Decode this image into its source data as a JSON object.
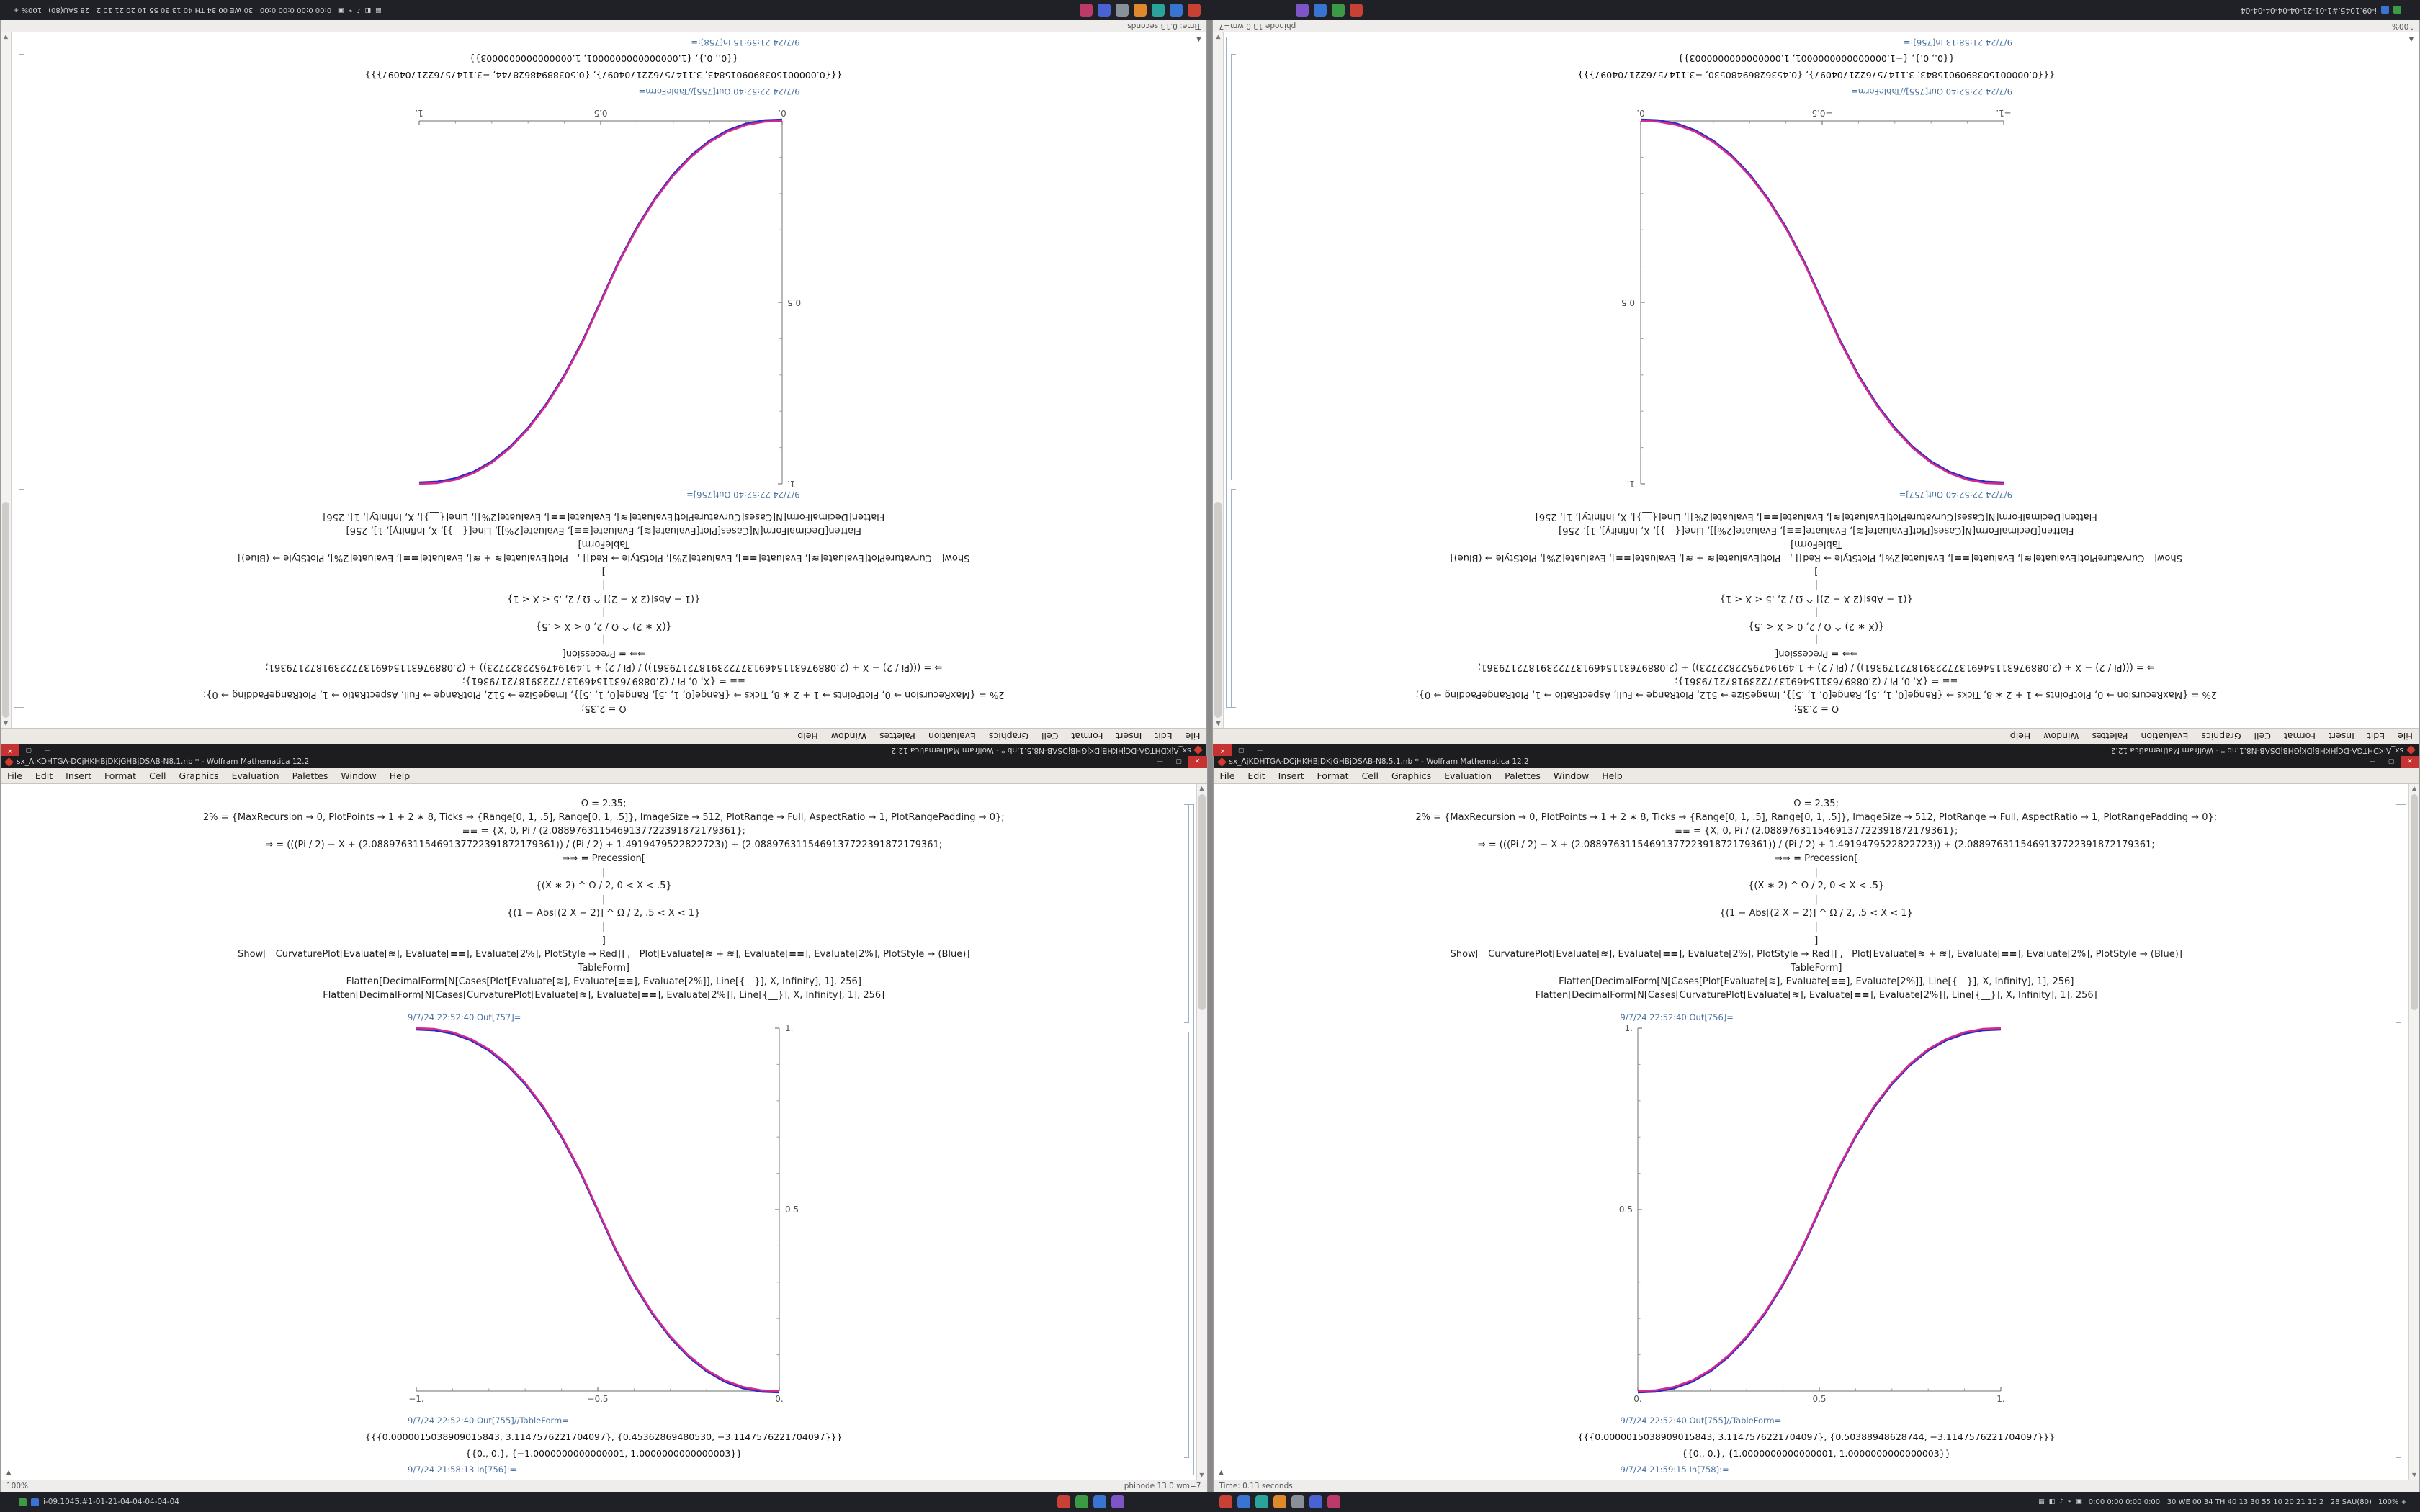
{
  "desktop": {
    "controls": {
      "minimize": "—",
      "maximize": "▢",
      "close": "✕"
    },
    "insertion_marker": "▲",
    "scroll_up": "▲",
    "scroll_down": "▼",
    "menu": [
      "File",
      "Edit",
      "Insert",
      "Format",
      "Cell",
      "Graphics",
      "Evaluation",
      "Palettes",
      "Window",
      "Help"
    ],
    "taskbar": {
      "left_text": "i-09.1045.#1-01-21-04-04-04-04-04",
      "apps_a": [
        "#c94034",
        "#3d9a44",
        "#3a74d2",
        "#7e55c6"
      ],
      "apps_b": [
        "#c94034",
        "#3a74d2",
        "#2aa39b",
        "#de8a2c",
        "#8a9097",
        "#4a63d4",
        "#bb3a68"
      ],
      "tray_glyphs": [
        "▦",
        "◧",
        "♪",
        "⌁",
        "▣"
      ],
      "tray_text": "0:00 0:00 0:00 0:00   30 WE 00 34 TH 40 13 30 55 10 20 21 10 2   28 SAU(80)",
      "tray_zoom": "100% +"
    },
    "windows": {
      "left": {
        "title": "sx_AjKDHTGA-DCjHKHBjDKjGHBjDSAB-N8.1.nb * - Wolfram Mathematica 12.2",
        "code_lines": [
          "Ω = 2.35;",
          "2% = {MaxRecursion → 0, PlotPoints → 1 + 2 ∗ 8, Ticks → {Range[0, 1, .5], Range[0, 1, .5]}, ImageSize → 512, PlotRange → Full, AspectRatio → 1, PlotRangePadding → 0};",
          "≡≡ = {X, 0, Pi / (2.0889763115469137722391872179361};",
          "⇒ = (((Pi / 2) − X + (2.0889763115469137722391872179361)) / (Pi / 2) + 1.4919479522822723)) + (2.0889763115469137722391872179361;",
          "⇒⇒ = Precession[",
          "|",
          "{(X ∗ 2) ^ Ω / 2, 0 < X < .5}",
          "|",
          "{(1 − Abs[(2 X − 2)] ^ Ω / 2, .5 < X < 1}",
          "|",
          "]",
          "Show[   CurvaturePlot[Evaluate[≋], Evaluate[≡≡], Evaluate[2%], PlotStyle → Red]] ,   Plot[Evaluate[≋ + ≋], Evaluate[≡≡], Evaluate[2%], PlotStyle → (Blue)]",
          "TableForm]",
          "Flatten[DecimalForm[N[Cases[Plot[Evaluate[≋], Evaluate[≡≡], Evaluate[2%]], Line[{__}], X, Infinity], 1], 256]",
          "Flatten[DecimalForm[N[Cases[CurvaturePlot[Evaluate[≋], Evaluate[≡≡], Evaluate[2%]], Line[{__}], X, Infinity], 1], 256]"
        ],
        "out_label": "9/7/24 22:52:40 Out[757]=",
        "tableform_label": "9/7/24 22:52:40 Out[755]//TableForm=",
        "result_line1": "{{{0.0000015038909015843, 3.1147576221704097}, {0.45362869480530, −3.1147576221704097}}}",
        "result_line2": "{{0., 0.}, {−1.0000000000000001, 1.0000000000000003}}",
        "in_label": "9/7/24 21:58:13 In[756]:=",
        "status_left": "100%",
        "status_right": "phinode 13.0 wm=7"
      },
      "right": {
        "title": "sx_AjKDHTGA-DCjHKHBjDKjGHBjDSAB-N8.5.1.nb * - Wolfram Mathematica 12.2",
        "code_lines": [
          "Ω = 2.35;",
          "2% = {MaxRecursion → 0, PlotPoints → 1 + 2 ∗ 8, Ticks → {Range[0, 1, .5], Range[0, 1, .5]}, ImageSize → 512, PlotRange → Full, AspectRatio → 1, PlotRangePadding → 0};",
          "≡≡ = {X, 0, Pi / (2.0889763115469137722391872179361};",
          "⇒ = (((Pi / 2) − X + (2.0889763115469137722391872179361)) / (Pi / 2) + 1.4919479522822723)) + (2.0889763115469137722391872179361;",
          "⇒⇒ = Precession[",
          "|",
          "{(X ∗ 2) ^ Ω / 2, 0 < X < .5}",
          "|",
          "{(1 − Abs[(2 X − 2)] ^ Ω / 2, .5 < X < 1}",
          "|",
          "]",
          "Show[   CurvaturePlot[Evaluate[≋], Evaluate[≡≡], Evaluate[2%], PlotStyle → Red]] ,   Plot[Evaluate[≋ + ≋], Evaluate[≡≡], Evaluate[2%], PlotStyle → (Blue)]",
          "TableForm]",
          "Flatten[DecimalForm[N[Cases[Plot[Evaluate[≋], Evaluate[≡≡], Evaluate[2%]], Line[{__}], X, Infinity], 1], 256]",
          "Flatten[DecimalForm[N[Cases[CurvaturePlot[Evaluate[≋], Evaluate[≡≡], Evaluate[2%]], Line[{__}], X, Infinity], 1], 256]"
        ],
        "out_label": "9/7/24 22:52:40 Out[756]=",
        "tableform_label": "9/7/24 22:52:40 Out[755]//TableForm=",
        "result_line1": "{{{0.0000015038909015843, 3.1147576221704097}, {0.50388948628744, −3.1147576221704097}}}",
        "result_line2": "{{0., 0.}, {1.0000000000000001, 1.0000000000000003}}",
        "in_label": "9/7/24 21:59:15 In[758]:=",
        "status_left": "Time: 0.13 seconds",
        "status_right": ""
      }
    }
  },
  "chart_data": [
    {
      "type": "line",
      "title": "",
      "xlabel": "",
      "ylabel": "",
      "x_range": [
        -1,
        0
      ],
      "y_range": [
        0,
        1
      ],
      "y_axis_side": "right",
      "minor_step": 0.1,
      "x_major": [
        {
          "v": -1,
          "label": "−1."
        },
        {
          "v": -0.5,
          "label": "−0.5"
        },
        {
          "v": 0,
          "label": "0."
        }
      ],
      "y_major": [
        {
          "v": 0.5,
          "label": "0.5"
        },
        {
          "v": 1,
          "label": "1."
        }
      ],
      "series": [
        {
          "name": "Plot",
          "color": "#2a2ac8"
        },
        {
          "name": "CurvaturePlot",
          "color": "#d62a8c"
        }
      ],
      "points": [
        [
          -1,
          1
        ],
        [
          -0.95,
          0.9978
        ],
        [
          -0.9,
          0.9886
        ],
        [
          -0.85,
          0.9705
        ],
        [
          -0.8,
          0.9419
        ],
        [
          -0.75,
          0.9019
        ],
        [
          -0.7,
          0.8495
        ],
        [
          -0.65,
          0.7837
        ],
        [
          -0.6,
          0.7039
        ],
        [
          -0.55,
          0.6097
        ],
        [
          -0.5,
          0.5
        ],
        [
          -0.45,
          0.3903
        ],
        [
          -0.4,
          0.2961
        ],
        [
          -0.35,
          0.2163
        ],
        [
          -0.3,
          0.1505
        ],
        [
          -0.25,
          0.0981
        ],
        [
          -0.2,
          0.0581
        ],
        [
          -0.15,
          0.0295
        ],
        [
          -0.1,
          0.0114
        ],
        [
          -0.05,
          0.0022
        ],
        [
          0,
          0
        ]
      ]
    },
    {
      "type": "line",
      "title": "",
      "xlabel": "",
      "ylabel": "",
      "x_range": [
        0,
        1
      ],
      "y_range": [
        0,
        1
      ],
      "y_axis_side": "left",
      "minor_step": 0.1,
      "x_major": [
        {
          "v": 0,
          "label": "0."
        },
        {
          "v": 0.5,
          "label": "0.5"
        },
        {
          "v": 1,
          "label": "1."
        }
      ],
      "y_major": [
        {
          "v": 0.5,
          "label": "0.5"
        },
        {
          "v": 1,
          "label": "1."
        }
      ],
      "series": [
        {
          "name": "Plot",
          "color": "#2a2ac8"
        },
        {
          "name": "CurvaturePlot",
          "color": "#d62a8c"
        }
      ],
      "points": [
        [
          0,
          0
        ],
        [
          0.05,
          0.0022
        ],
        [
          0.1,
          0.0114
        ],
        [
          0.15,
          0.0295
        ],
        [
          0.2,
          0.0581
        ],
        [
          0.25,
          0.0981
        ],
        [
          0.3,
          0.1505
        ],
        [
          0.35,
          0.2163
        ],
        [
          0.4,
          0.2961
        ],
        [
          0.45,
          0.3903
        ],
        [
          0.5,
          0.5
        ],
        [
          0.55,
          0.6097
        ],
        [
          0.6,
          0.7039
        ],
        [
          0.65,
          0.7837
        ],
        [
          0.7,
          0.8495
        ],
        [
          0.75,
          0.9019
        ],
        [
          0.8,
          0.9419
        ],
        [
          0.85,
          0.9705
        ],
        [
          0.9,
          0.9886
        ],
        [
          0.95,
          0.9978
        ],
        [
          1,
          1
        ]
      ]
    }
  ]
}
